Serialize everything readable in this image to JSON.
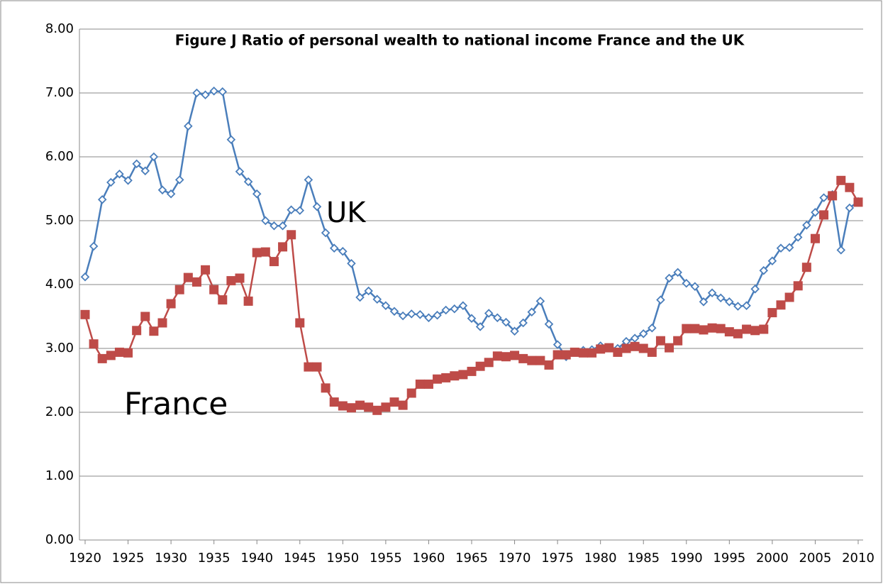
{
  "chart_data": {
    "type": "line",
    "title": "Figure J Ratio of personal wealth to national income France and the UK",
    "x": [
      1920,
      1921,
      1922,
      1923,
      1924,
      1925,
      1926,
      1927,
      1928,
      1929,
      1930,
      1931,
      1932,
      1933,
      1934,
      1935,
      1936,
      1937,
      1938,
      1939,
      1940,
      1941,
      1942,
      1943,
      1944,
      1945,
      1946,
      1947,
      1948,
      1949,
      1950,
      1951,
      1952,
      1953,
      1954,
      1955,
      1956,
      1957,
      1958,
      1959,
      1960,
      1961,
      1962,
      1963,
      1964,
      1965,
      1966,
      1967,
      1968,
      1969,
      1970,
      1971,
      1972,
      1973,
      1974,
      1975,
      1976,
      1977,
      1978,
      1979,
      1980,
      1981,
      1982,
      1983,
      1984,
      1985,
      1986,
      1987,
      1988,
      1989,
      1990,
      1991,
      1992,
      1993,
      1994,
      1995,
      1996,
      1997,
      1998,
      1999,
      2000,
      2001,
      2002,
      2003,
      2004,
      2005,
      2006,
      2007,
      2008,
      2009,
      2010
    ],
    "series": [
      {
        "name": "UK",
        "color": "#4a7ebb",
        "marker": "diamond",
        "values": [
          4.12,
          4.6,
          5.33,
          5.6,
          5.73,
          5.63,
          5.89,
          5.78,
          6.0,
          5.48,
          5.42,
          5.64,
          6.48,
          7.0,
          6.97,
          7.03,
          7.02,
          6.27,
          5.77,
          5.61,
          5.42,
          5.0,
          4.92,
          4.92,
          5.17,
          5.16,
          5.64,
          5.22,
          4.81,
          4.57,
          4.52,
          4.33,
          3.8,
          3.9,
          3.77,
          3.67,
          3.58,
          3.51,
          3.54,
          3.53,
          3.48,
          3.52,
          3.6,
          3.62,
          3.67,
          3.47,
          3.34,
          3.55,
          3.48,
          3.41,
          3.27,
          3.4,
          3.57,
          3.74,
          3.38,
          3.06,
          2.87,
          2.94,
          2.97,
          2.98,
          3.04,
          3.01,
          3.0,
          3.11,
          3.16,
          3.23,
          3.32,
          3.76,
          4.1,
          4.19,
          4.02,
          3.97,
          3.73,
          3.87,
          3.79,
          3.73,
          3.66,
          3.67,
          3.93,
          4.22,
          4.37,
          4.57,
          4.58,
          4.74,
          4.93,
          5.13,
          5.36,
          5.41,
          4.54,
          5.2,
          5.3
        ]
      },
      {
        "name": "France",
        "color": "#be4b48",
        "marker": "square",
        "values": [
          3.53,
          3.07,
          2.84,
          2.89,
          2.94,
          2.93,
          3.28,
          3.5,
          3.27,
          3.4,
          3.7,
          3.92,
          4.11,
          4.04,
          4.23,
          3.92,
          3.76,
          4.06,
          4.1,
          3.74,
          4.5,
          4.51,
          4.36,
          4.59,
          4.78,
          3.4,
          2.71,
          2.71,
          2.38,
          2.16,
          2.1,
          2.07,
          2.11,
          2.08,
          2.03,
          2.08,
          2.16,
          2.11,
          2.3,
          2.44,
          2.44,
          2.52,
          2.54,
          2.57,
          2.59,
          2.64,
          2.72,
          2.78,
          2.88,
          2.87,
          2.89,
          2.84,
          2.81,
          2.81,
          2.74,
          2.9,
          2.9,
          2.94,
          2.93,
          2.93,
          2.99,
          3.01,
          2.94,
          3.0,
          3.03,
          3.0,
          2.94,
          3.12,
          3.01,
          3.12,
          3.31,
          3.31,
          3.29,
          3.32,
          3.31,
          3.26,
          3.23,
          3.3,
          3.28,
          3.3,
          3.56,
          3.68,
          3.8,
          3.98,
          4.27,
          4.72,
          5.09,
          5.39,
          5.63,
          5.52,
          5.29
        ]
      }
    ],
    "xlim": [
      1920,
      2010
    ],
    "xticks": [
      1920,
      1925,
      1930,
      1935,
      1940,
      1945,
      1950,
      1955,
      1960,
      1965,
      1970,
      1975,
      1980,
      1985,
      1990,
      1995,
      2000,
      2005,
      2010
    ],
    "ylim": [
      0,
      8
    ],
    "yticks": [
      {
        "value": 0,
        "label": "0.00"
      },
      {
        "value": 1,
        "label": "1.00"
      },
      {
        "value": 2,
        "label": "2.00"
      },
      {
        "value": 3,
        "label": "3.00"
      },
      {
        "value": 4,
        "label": "4.00"
      },
      {
        "value": 5,
        "label": "5.00"
      },
      {
        "value": 6,
        "label": "6.00"
      },
      {
        "value": 7,
        "label": "7.00"
      },
      {
        "value": 8,
        "label": "8.00"
      }
    ],
    "grid": true
  }
}
